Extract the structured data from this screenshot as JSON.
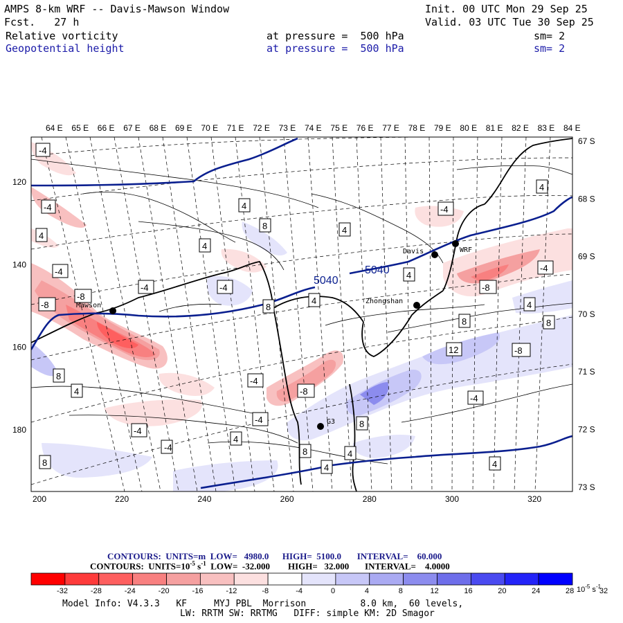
{
  "header": {
    "title": "AMPS 8-km WRF -- Davis-Mawson Window",
    "forecast": "Fcst.   27 h",
    "init": "Init. 00 UTC Mon 29 Sep 25",
    "valid": "Valid. 03 UTC Tue 30 Sep 25",
    "field1": {
      "name": "Relative vorticity",
      "pressure_label": "at pressure =  500 hPa",
      "smoothing": "sm= 2"
    },
    "field2": {
      "name": "Geopotential height",
      "pressure_label": "at pressure =  500 hPa",
      "smoothing": "sm= 2"
    }
  },
  "map": {
    "lon_labels": [
      "64 E",
      "65 E",
      "66 E",
      "67 E",
      "68 E",
      "69 E",
      "70 E",
      "71 E",
      "72 E",
      "73 E",
      "74 E",
      "75 E",
      "76 E",
      "77 E",
      "78 E",
      "79 E",
      "80 E",
      "81 E",
      "82 E",
      "83 E",
      "84 E"
    ],
    "lat_labels": [
      "67 S",
      "68 S",
      "69 S",
      "70 S",
      "71 S",
      "72 S",
      "73 S"
    ],
    "x_ticks": [
      "200",
      "220",
      "240",
      "260",
      "280",
      "300",
      "320"
    ],
    "y_ticks": [
      "120",
      "140",
      "160",
      "180"
    ],
    "stations": [
      {
        "name": "Mawson"
      },
      {
        "name": "Davis"
      },
      {
        "name": "WRF"
      },
      {
        "name": "Zhongshan"
      },
      {
        "name": "G3"
      }
    ],
    "height_labels": [
      "5040",
      "5040"
    ],
    "vorticity_labels": [
      "-4",
      "-4",
      "4",
      "-4",
      "-8",
      "-8",
      "-4",
      "4",
      "8",
      "4",
      "-4",
      "4",
      "8",
      "-4",
      "4",
      "-4",
      "-8",
      "4",
      "8",
      "8",
      "12",
      "-8",
      "-4",
      "8",
      "-4",
      "-8",
      "-4",
      "4",
      "4",
      "8",
      "4",
      "4",
      "8",
      "-4",
      "4",
      "8",
      "-4",
      "4",
      "4"
    ]
  },
  "contours_info": {
    "line1": "CONTOURS:  UNITS=m  LOW=   4980.0      HIGH=  5100.0       INTERVAL=    60.000",
    "line2_prefix": "CONTOURS:  UNITS=10",
    "line2_exp": "-5",
    "line2_unit": " s",
    "line2_unit_exp": "-1",
    "line2_rest": "  LOW=  -32.000        HIGH=   32.000       INTERVAL=    4.0000"
  },
  "colorbar": {
    "colors": [
      "#ff0000",
      "#fe3b3b",
      "#fe5f5f",
      "#f88080",
      "#f5a0a0",
      "#f8c0c0",
      "#fce0e0",
      "#ffffff",
      "#ffffff",
      "#e4e4fb",
      "#c7c7f7",
      "#aaaaf2",
      "#8c8cee",
      "#6e6eea",
      "#4a4af0",
      "#2323f8",
      "#0000ff"
    ],
    "labels": [
      "-32",
      "-28",
      "-24",
      "-20",
      "-16",
      "-12",
      "-8",
      "-4",
      "0",
      "4",
      "8",
      "12",
      "16",
      "20",
      "24",
      "28",
      "32"
    ],
    "unit": "10",
    "unit_exp": "-5",
    "unit_suffix": " s",
    "unit_suffix_exp": "-1"
  },
  "footer": {
    "line1": "Model Info: V4.3.3   KF     MYJ PBL  Morrison          8.0 km,  60 levels,",
    "line2": "LW: RRTM SW: RRTMG   DIFF: simple KM: 2D Smagor"
  },
  "colors": {
    "height_contour": "#0a1f8f",
    "coast": "#000000",
    "label_blue": "#1a1aa8"
  }
}
